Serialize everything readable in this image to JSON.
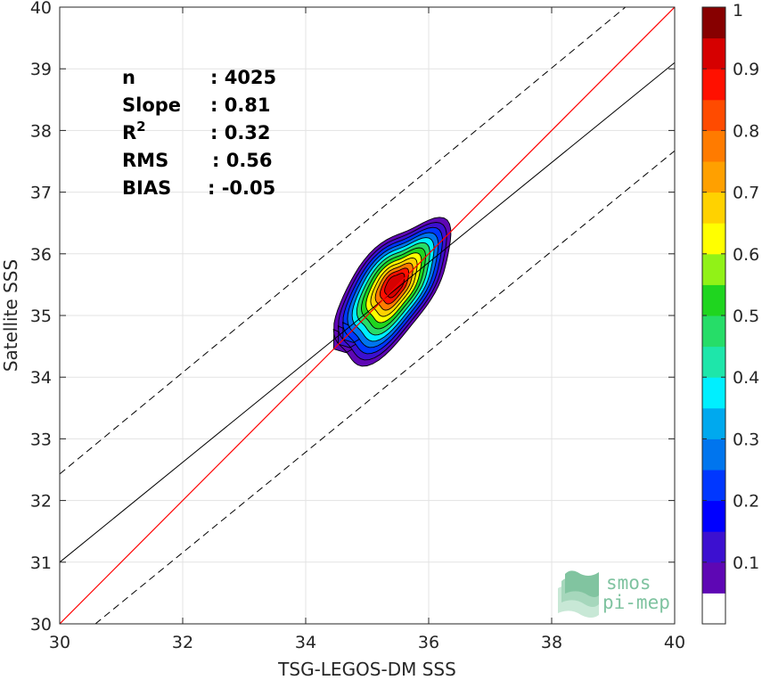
{
  "chart_data": {
    "type": "heatmap",
    "subtype": "density-contour-scatter",
    "xlabel": "TSG-LEGOS-DM SSS",
    "ylabel": "Satellite SSS",
    "xlim": [
      30,
      40
    ],
    "ylim": [
      30,
      40
    ],
    "xticks": [
      "30",
      "32",
      "34",
      "36",
      "38",
      "40"
    ],
    "yticks": [
      "30",
      "31",
      "32",
      "33",
      "34",
      "35",
      "36",
      "37",
      "38",
      "39",
      "40"
    ],
    "grid": true,
    "stats": [
      {
        "label": "n",
        "value": ": 4025"
      },
      {
        "label": "Slope",
        "value": ": 0.81"
      },
      {
        "label": "R",
        "sup": "2",
        "value": ": 0.32"
      },
      {
        "label": "RMS",
        "value": ": 0.56"
      },
      {
        "label": "BIAS",
        "value": ": -0.05"
      }
    ],
    "lines": {
      "identity": {
        "color": "#ff0000",
        "x": [
          30,
          40
        ],
        "y": [
          30,
          40
        ]
      },
      "regression": {
        "color": "#000000",
        "x": [
          30,
          40
        ],
        "y": [
          31.0,
          39.1
        ]
      },
      "upper_bound": {
        "color": "#000000",
        "dash": true,
        "x": [
          30,
          39.2
        ],
        "y": [
          32.43,
          40
        ]
      },
      "lower_bound": {
        "color": "#000000",
        "dash": true,
        "x": [
          30.58,
          40
        ],
        "y": [
          30,
          37.67
        ]
      }
    },
    "density_center": {
      "x": 35.45,
      "y": 35.5
    },
    "colorbar": {
      "ticks": [
        "0.1",
        "0.2",
        "0.3",
        "0.4",
        "0.5",
        "0.6",
        "0.7",
        "0.8",
        "0.9",
        "1"
      ],
      "range": [
        0,
        1
      ],
      "colors": [
        "#ffffff",
        "#5e07b4",
        "#3c10d0",
        "#0000ff",
        "#0037ff",
        "#0075ee",
        "#00a9ee",
        "#00efff",
        "#1ee6aa",
        "#26dd68",
        "#1fd51f",
        "#91f217",
        "#ffff00",
        "#ffd200",
        "#ffa000",
        "#ff7b00",
        "#ff4b00",
        "#ff1000",
        "#d60000",
        "#870000"
      ]
    }
  },
  "logo": {
    "line1": "smos",
    "line2": "pi-mep"
  }
}
